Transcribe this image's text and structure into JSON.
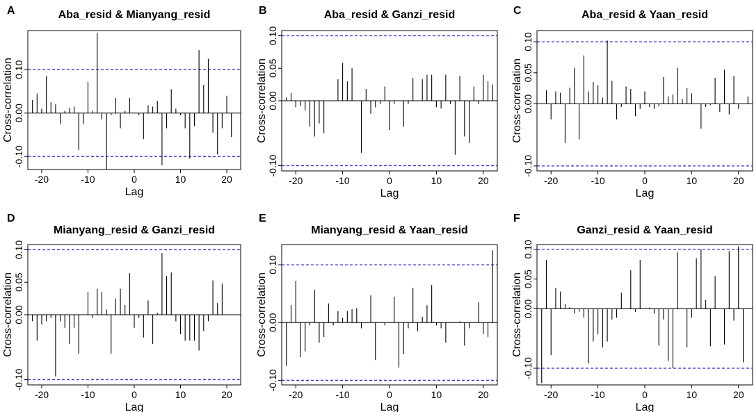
{
  "figure": {
    "description_lag_range": [
      -22,
      22
    ]
  },
  "chart_data": [
    {
      "type": "bar",
      "panel": "A",
      "title": "Aba_resid & Mianyang_resid",
      "xlabel": "Lag",
      "ylabel": "Cross-correlation",
      "xlim": [
        -23,
        23
      ],
      "ylim": [
        -0.13,
        0.19
      ],
      "xticks": [
        -20,
        -10,
        0,
        10,
        20
      ],
      "xtick_labels": [
        "-20",
        "-10",
        "0",
        "10",
        "20"
      ],
      "yticks": [
        -0.1,
        0.0,
        0.1
      ],
      "ytick_labels": [
        "-0.10",
        "0.00",
        "0.10"
      ],
      "conf_band": [
        0.1,
        -0.1
      ],
      "conf_color": "#2b2bd4",
      "x": [
        -22,
        -21,
        -20,
        -19,
        -18,
        -17,
        -16,
        -15,
        -14,
        -13,
        -12,
        -11,
        -10,
        -9,
        -8,
        -7,
        -6,
        -5,
        -4,
        -3,
        -2,
        -1,
        0,
        1,
        2,
        3,
        4,
        5,
        6,
        7,
        8,
        9,
        10,
        11,
        12,
        13,
        14,
        15,
        16,
        17,
        18,
        19,
        20,
        21,
        22
      ],
      "values": [
        0.03,
        0.045,
        0.01,
        0.085,
        0.025,
        0.02,
        -0.025,
        0.005,
        0.012,
        0.015,
        -0.085,
        -0.025,
        0.072,
        0.005,
        0.185,
        -0.015,
        -0.13,
        -0.005,
        0.035,
        -0.035,
        0.005,
        0.035,
        0.001,
        -0.005,
        -0.06,
        0.018,
        0.015,
        0.028,
        -0.12,
        -0.035,
        0.055,
        0.01,
        -0.005,
        -0.035,
        -0.105,
        -0.03,
        0.145,
        0.065,
        0.125,
        -0.045,
        -0.095,
        -0.035,
        0.04,
        -0.055,
        0.0
      ]
    },
    {
      "type": "bar",
      "panel": "B",
      "title": "Aba_resid & Ganzi_resid",
      "xlabel": "Lag",
      "ylabel": "Cross-correlation",
      "xlim": [
        -23,
        23
      ],
      "ylim": [
        -0.108,
        0.108
      ],
      "xticks": [
        -20,
        -10,
        0,
        10,
        20
      ],
      "xtick_labels": [
        "-20",
        "-10",
        "0",
        "10",
        "20"
      ],
      "yticks": [
        -0.1,
        0.0,
        0.05,
        0.1
      ],
      "ytick_labels": [
        "-0.10",
        "0.00",
        "0.05",
        "0.10"
      ],
      "conf_band": [
        0.1,
        -0.1
      ],
      "conf_color": "#2b2bd4",
      "x": [
        -22,
        -21,
        -20,
        -19,
        -18,
        -17,
        -16,
        -15,
        -14,
        -13,
        -12,
        -11,
        -10,
        -9,
        -8,
        -7,
        -6,
        -5,
        -4,
        -3,
        -2,
        -1,
        0,
        1,
        2,
        3,
        4,
        5,
        6,
        7,
        8,
        9,
        10,
        11,
        12,
        13,
        14,
        15,
        16,
        17,
        18,
        19,
        20,
        21,
        22
      ],
      "values": [
        0.005,
        0.012,
        -0.01,
        -0.008,
        -0.015,
        -0.04,
        -0.055,
        -0.035,
        -0.05,
        0.0,
        0.0,
        0.033,
        0.058,
        0.03,
        0.05,
        0.0,
        -0.08,
        0.018,
        -0.02,
        -0.01,
        -0.005,
        0.022,
        -0.045,
        -0.005,
        0.0,
        -0.04,
        -0.005,
        0.035,
        0.0,
        0.033,
        0.04,
        0.04,
        -0.01,
        -0.012,
        0.04,
        -0.005,
        -0.083,
        0.038,
        -0.055,
        -0.065,
        0.022,
        -0.005,
        0.04,
        0.03,
        0.025
      ]
    },
    {
      "type": "bar",
      "panel": "C",
      "title": "Aba_resid & Yaan_resid",
      "xlabel": "Lag",
      "ylabel": "Cross-correlation",
      "xlim": [
        -23,
        23
      ],
      "ylim": [
        -0.108,
        0.118
      ],
      "xticks": [
        -20,
        -10,
        0,
        10,
        20
      ],
      "xtick_labels": [
        "-20",
        "-10",
        "0",
        "10",
        "20"
      ],
      "yticks": [
        -0.1,
        0.0,
        0.05,
        0.1
      ],
      "ytick_labels": [
        "-0.10",
        "0.00",
        "0.05",
        "0.10"
      ],
      "conf_band": [
        0.1,
        -0.1
      ],
      "conf_color": "#2b2bd4",
      "x": [
        -22,
        -21,
        -20,
        -19,
        -18,
        -17,
        -16,
        -15,
        -14,
        -13,
        -12,
        -11,
        -10,
        -9,
        -8,
        -7,
        -6,
        -5,
        -4,
        -3,
        -2,
        -1,
        0,
        1,
        2,
        3,
        4,
        5,
        6,
        7,
        8,
        9,
        10,
        11,
        12,
        13,
        14,
        15,
        16,
        17,
        18,
        19,
        20,
        21,
        22
      ],
      "values": [
        0.0,
        0.022,
        -0.025,
        0.02,
        0.018,
        -0.063,
        0.026,
        0.058,
        -0.057,
        0.078,
        0.02,
        0.035,
        0.03,
        0.01,
        0.102,
        0.037,
        -0.025,
        -0.005,
        0.028,
        0.024,
        -0.02,
        -0.008,
        0.02,
        -0.005,
        -0.008,
        -0.004,
        0.043,
        0.012,
        0.015,
        0.058,
        0.008,
        0.025,
        0.017,
        0.0,
        -0.04,
        -0.005,
        -0.002,
        0.042,
        -0.013,
        0.055,
        -0.017,
        0.045,
        -0.008,
        0.0,
        0.012
      ]
    },
    {
      "type": "bar",
      "panel": "D",
      "title": "Mianyang_resid & Ganzi_resid",
      "xlabel": "Lag",
      "ylabel": "Cross-correlation",
      "xlim": [
        -23,
        23
      ],
      "ylim": [
        -0.108,
        0.108
      ],
      "xticks": [
        -20,
        -10,
        0,
        10,
        20
      ],
      "xtick_labels": [
        "-20",
        "-10",
        "0",
        "10",
        "20"
      ],
      "yticks": [
        -0.1,
        0.0,
        0.05,
        0.1
      ],
      "ytick_labels": [
        "-0.10",
        "0.00",
        "0.05",
        "0.10"
      ],
      "conf_band": [
        0.1,
        -0.1
      ],
      "conf_color": "#2b2bd4",
      "x": [
        -22,
        -21,
        -20,
        -19,
        -18,
        -17,
        -16,
        -15,
        -14,
        -13,
        -12,
        -11,
        -10,
        -9,
        -8,
        -7,
        -6,
        -5,
        -4,
        -3,
        -2,
        -1,
        0,
        1,
        2,
        3,
        4,
        5,
        6,
        7,
        8,
        9,
        10,
        11,
        12,
        13,
        14,
        15,
        16,
        17,
        18,
        19,
        20,
        21,
        22
      ],
      "values": [
        -0.01,
        -0.04,
        -0.015,
        -0.01,
        -0.005,
        -0.095,
        -0.01,
        -0.02,
        -0.045,
        -0.02,
        -0.06,
        0.0,
        0.035,
        -0.005,
        0.04,
        0.035,
        0.008,
        -0.06,
        0.025,
        0.04,
        0.015,
        0.064,
        -0.02,
        -0.005,
        -0.035,
        0.022,
        -0.045,
        0.003,
        0.095,
        0.06,
        0.065,
        -0.01,
        -0.03,
        -0.04,
        -0.04,
        -0.04,
        -0.055,
        -0.025,
        -0.01,
        0.053,
        0.018,
        0.048,
        0.0,
        0.0,
        0.0
      ]
    },
    {
      "type": "bar",
      "panel": "E",
      "title": "Mianyang_resid & Yaan_resid",
      "xlabel": "Lag",
      "ylabel": "Cross-correlation",
      "xlim": [
        -23,
        23
      ],
      "ylim": [
        -0.108,
        0.135
      ],
      "xticks": [
        -20,
        -10,
        0,
        10,
        20
      ],
      "xtick_labels": [
        "-20",
        "-10",
        "0",
        "10",
        "20"
      ],
      "yticks": [
        -0.1,
        0.0,
        0.1
      ],
      "ytick_labels": [
        "-0.10",
        "0.00",
        "0.10"
      ],
      "conf_band": [
        0.1,
        -0.1
      ],
      "conf_color": "#2b2bd4",
      "x": [
        -22,
        -21,
        -20,
        -19,
        -18,
        -17,
        -16,
        -15,
        -14,
        -13,
        -12,
        -11,
        -10,
        -9,
        -8,
        -7,
        -6,
        -5,
        -4,
        -3,
        -2,
        -1,
        0,
        1,
        2,
        3,
        4,
        5,
        6,
        7,
        8,
        9,
        10,
        11,
        12,
        13,
        14,
        15,
        16,
        17,
        18,
        19,
        20,
        21,
        22
      ],
      "values": [
        -0.075,
        0.03,
        0.072,
        -0.06,
        -0.05,
        -0.005,
        0.057,
        -0.035,
        -0.025,
        0.033,
        -0.005,
        0.02,
        0.008,
        0.02,
        0.023,
        0.025,
        -0.01,
        0.0,
        0.047,
        -0.065,
        0.0,
        -0.005,
        0.0,
        0.045,
        -0.078,
        -0.055,
        -0.01,
        0.06,
        -0.015,
        0.01,
        0.03,
        0.065,
        -0.005,
        -0.01,
        -0.035,
        0.0,
        0.0,
        0.002,
        -0.04,
        -0.01,
        0.0,
        0.035,
        -0.02,
        -0.025,
        0.125
      ]
    },
    {
      "type": "bar",
      "panel": "F",
      "title": "Ganzi_resid & Yaan_resid",
      "xlabel": "Lag",
      "ylabel": "Cross-correlation",
      "xlim": [
        -23,
        23
      ],
      "ylim": [
        -0.128,
        0.108
      ],
      "xticks": [
        -20,
        -10,
        0,
        10,
        20
      ],
      "xtick_labels": [
        "-20",
        "-10",
        "0",
        "10",
        "20"
      ],
      "yticks": [
        -0.1,
        0.0,
        0.05,
        0.1
      ],
      "ytick_labels": [
        "-0.10",
        "0.00",
        "0.05",
        "0.10"
      ],
      "conf_band": [
        0.1,
        -0.1
      ],
      "conf_color": "#2b2bd4",
      "x": [
        -22,
        -21,
        -20,
        -19,
        -18,
        -17,
        -16,
        -15,
        -14,
        -13,
        -12,
        -11,
        -10,
        -9,
        -8,
        -7,
        -6,
        -5,
        -4,
        -3,
        -2,
        -1,
        0,
        1,
        2,
        3,
        4,
        5,
        6,
        7,
        8,
        9,
        10,
        11,
        12,
        13,
        14,
        15,
        16,
        17,
        18,
        19,
        20,
        21,
        22
      ],
      "values": [
        -0.125,
        0.082,
        -0.078,
        0.035,
        0.029,
        0.008,
        0.003,
        -0.008,
        -0.005,
        -0.015,
        -0.092,
        -0.055,
        -0.043,
        -0.065,
        -0.055,
        -0.018,
        -0.015,
        0.027,
        0.0,
        0.065,
        -0.005,
        0.082,
        0.0,
        0.002,
        -0.008,
        -0.062,
        -0.018,
        -0.088,
        -0.1,
        0.095,
        0.0,
        -0.065,
        -0.015,
        0.085,
        0.1,
        0.015,
        -0.063,
        0.055,
        0.0,
        -0.06,
        0.097,
        -0.02,
        0.105,
        -0.09,
        0.0
      ]
    }
  ]
}
